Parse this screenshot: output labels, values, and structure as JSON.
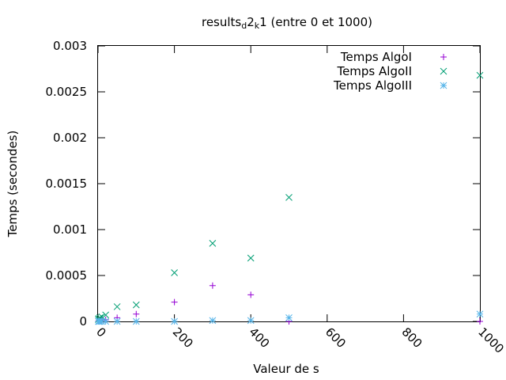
{
  "chart_data": {
    "type": "scatter",
    "title": "results_d2_k1 (entre 0 et 1000)",
    "title_parts": {
      "base": "results",
      "sub1": "d",
      "mid": "2",
      "sub2": "k",
      "end": "1 (entre 0 et 1000)"
    },
    "xlabel": "Valeur de s",
    "ylabel": "Temps (secondes)",
    "xlim": [
      0,
      1000
    ],
    "ylim": [
      0,
      0.003
    ],
    "xticks": [
      "0",
      "200",
      "400",
      "600",
      "800",
      "1000"
    ],
    "yticks": [
      "0",
      "0.0005",
      "0.001",
      "0.0015",
      "0.002",
      "0.0025",
      "0.003"
    ],
    "grid": false,
    "legend_position": "top-right",
    "series": [
      {
        "name": "Temps AlgoI",
        "marker": "plus",
        "color": "#9400d3",
        "points": [
          [
            1,
            4e-06
          ],
          [
            2,
            6e-06
          ],
          [
            5,
            8e-06
          ],
          [
            10,
            1.2e-05
          ],
          [
            20,
            1.8e-05
          ],
          [
            50,
            4e-05
          ],
          [
            100,
            8e-05
          ],
          [
            200,
            0.00021
          ],
          [
            300,
            0.00039
          ],
          [
            400,
            0.00029
          ],
          [
            500,
            0.0
          ],
          [
            1000,
            0.0
          ]
        ]
      },
      {
        "name": "Temps AlgoII",
        "marker": "cross",
        "color": "#009e73",
        "points": [
          [
            1,
            2e-05
          ],
          [
            2,
            3e-05
          ],
          [
            5,
            4e-05
          ],
          [
            10,
            5e-05
          ],
          [
            20,
            7e-05
          ],
          [
            50,
            0.00016
          ],
          [
            100,
            0.00018
          ],
          [
            200,
            0.00053
          ],
          [
            300,
            0.00085
          ],
          [
            400,
            0.00069
          ],
          [
            500,
            0.00135
          ],
          [
            1000,
            0.00268
          ]
        ]
      },
      {
        "name": "Temps AlgoIII",
        "marker": "star",
        "color": "#56b4e9",
        "points": [
          [
            1,
            0.0
          ],
          [
            2,
            0.0
          ],
          [
            5,
            0.0
          ],
          [
            10,
            0.0
          ],
          [
            20,
            0.0
          ],
          [
            50,
            0.0
          ],
          [
            100,
            0.0
          ],
          [
            200,
            0.0
          ],
          [
            300,
            1e-05
          ],
          [
            400,
            1e-05
          ],
          [
            500,
            4e-05
          ],
          [
            1000,
            8e-05
          ]
        ]
      }
    ]
  }
}
